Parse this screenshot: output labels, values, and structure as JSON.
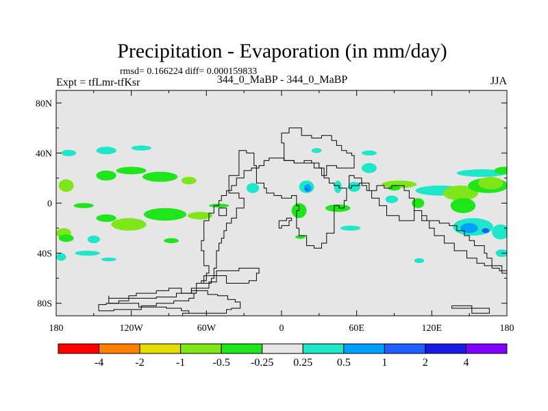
{
  "chart_data": {
    "type": "heatmap",
    "title": "Precipitation - Evaporation (in mm/day)",
    "stats": "rmsd= 0.166224 diff= 0.000159833",
    "left_label": "Expt = tfLmr-tfKsr",
    "center_label": "344_0_MaBP - 344_0_MaBP",
    "right_label": "JJA",
    "xlim": [
      -180,
      180
    ],
    "ylim": [
      -90,
      90
    ],
    "x_ticks": [
      {
        "value": -180,
        "label": "180"
      },
      {
        "value": -120,
        "label": "120W"
      },
      {
        "value": -60,
        "label": "60W"
      },
      {
        "value": 0,
        "label": "0"
      },
      {
        "value": 60,
        "label": "60E"
      },
      {
        "value": 120,
        "label": "120E"
      },
      {
        "value": 180,
        "label": "180"
      }
    ],
    "y_ticks": [
      {
        "value": 80,
        "label": "80N"
      },
      {
        "value": 40,
        "label": "40N"
      },
      {
        "value": 0,
        "label": "0"
      },
      {
        "value": -40,
        "label": "40S"
      },
      {
        "value": -80,
        "label": "80S"
      }
    ],
    "colorbar": {
      "colors": [
        "#ff0000",
        "#ff7f00",
        "#e6dc00",
        "#7fe61a",
        "#1ee61a",
        "#e6e6e6",
        "#1ee6c8",
        "#00a0ff",
        "#1f5fff",
        "#1a1ae6",
        "#8000ff"
      ],
      "labels": [
        "-4",
        "-2",
        "-1",
        "-0.5",
        "-0.25",
        "0.25",
        "0.5",
        "1",
        "2",
        "4"
      ]
    },
    "anomaly_regions": [
      {
        "lon": -170,
        "lat": 40,
        "rlon": 6,
        "rlat": 2.5,
        "class": 6
      },
      {
        "lon": -140,
        "lat": 42,
        "rlon": 8,
        "rlat": 3,
        "class": 6
      },
      {
        "lon": -112,
        "lat": 44,
        "rlon": 8,
        "rlat": 2,
        "class": 6
      },
      {
        "lon": -172,
        "lat": 14,
        "rlon": 6,
        "rlat": 5,
        "class": 3
      },
      {
        "lon": -140,
        "lat": 22,
        "rlon": 8,
        "rlat": 4,
        "class": 4
      },
      {
        "lon": -120,
        "lat": 26,
        "rlon": 12,
        "rlat": 3,
        "class": 4
      },
      {
        "lon": -97,
        "lat": 21,
        "rlon": 14,
        "rlat": 4,
        "class": 4
      },
      {
        "lon": -74,
        "lat": 18,
        "rlon": 6,
        "rlat": 3,
        "class": 3
      },
      {
        "lon": -158,
        "lat": -2,
        "rlon": 8,
        "rlat": 2,
        "class": 4
      },
      {
        "lon": -140,
        "lat": -12,
        "rlon": 8,
        "rlat": 3,
        "class": 4
      },
      {
        "lon": -122,
        "lat": -17,
        "rlon": 14,
        "rlat": 5,
        "class": 3
      },
      {
        "lon": -93,
        "lat": -9,
        "rlon": 17,
        "rlat": 5,
        "class": 4
      },
      {
        "lon": -65,
        "lat": -10,
        "rlon": 10,
        "rlat": 3,
        "class": 3
      },
      {
        "lon": -50,
        "lat": -2,
        "rlon": 8,
        "rlat": 1.5,
        "class": 4
      },
      {
        "lon": -174,
        "lat": -24,
        "rlon": 6,
        "rlat": 4,
        "class": 3
      },
      {
        "lon": -172,
        "lat": -28,
        "rlon": 6,
        "rlat": 3,
        "class": 4
      },
      {
        "lon": -150,
        "lat": -29,
        "rlon": 5,
        "rlat": 3,
        "class": 6
      },
      {
        "lon": -155,
        "lat": -40,
        "rlon": 10,
        "rlat": 2,
        "class": 6
      },
      {
        "lon": -88,
        "lat": -30,
        "rlon": 6,
        "rlat": 2,
        "class": 4
      },
      {
        "lon": -176,
        "lat": -43,
        "rlon": 4,
        "rlat": 3,
        "class": 6
      },
      {
        "lon": -138,
        "lat": -45,
        "rlon": 6,
        "rlat": 1.5,
        "class": 6
      },
      {
        "lon": -23,
        "lat": 12,
        "rlon": 5,
        "rlat": 4,
        "class": 6
      },
      {
        "lon": 20,
        "lat": 13,
        "rlon": 6,
        "rlat": 5,
        "class": 6
      },
      {
        "lon": 21,
        "lat": 12,
        "rlon": 3,
        "rlat": 3,
        "class": 7
      },
      {
        "lon": 20,
        "lat": 11,
        "rlon": 1.2,
        "rlat": 1.2,
        "class": 8
      },
      {
        "lon": 45,
        "lat": 13,
        "rlon": 3,
        "rlat": 5,
        "class": 6
      },
      {
        "lon": 58,
        "lat": 13,
        "rlon": 5,
        "rlat": 4,
        "class": 6
      },
      {
        "lon": 70,
        "lat": 28,
        "rlon": 6,
        "rlat": 4,
        "class": 6
      },
      {
        "lon": 70,
        "lat": 40,
        "rlon": 6,
        "rlat": 2,
        "class": 6
      },
      {
        "lon": 28,
        "lat": 42,
        "rlon": 4,
        "rlat": 2,
        "class": 6
      },
      {
        "lon": 14,
        "lat": -6,
        "rlon": 6,
        "rlat": 6,
        "class": 4
      },
      {
        "lon": 45,
        "lat": -4,
        "rlon": 10,
        "rlat": 3,
        "class": 4
      },
      {
        "lon": 94,
        "lat": 15,
        "rlon": 14,
        "rlat": 3,
        "class": 3
      },
      {
        "lon": 90,
        "lat": 12,
        "rlon": 5,
        "rlat": 2,
        "class": 4
      },
      {
        "lon": 88,
        "lat": 3,
        "rlon": 5,
        "rlat": 3,
        "class": 6
      },
      {
        "lon": 109,
        "lat": 0,
        "rlon": 5,
        "rlat": 4,
        "class": 4
      },
      {
        "lon": 127,
        "lat": 10,
        "rlon": 20,
        "rlat": 4,
        "class": 6
      },
      {
        "lon": 143,
        "lat": 8,
        "rlon": 14,
        "rlat": 6,
        "class": 3
      },
      {
        "lon": 165,
        "lat": 14,
        "rlon": 16,
        "rlat": 6,
        "class": 4
      },
      {
        "lon": 167,
        "lat": 16,
        "rlon": 10,
        "rlat": 5,
        "class": 3
      },
      {
        "lon": 160,
        "lat": 24,
        "rlon": 20,
        "rlat": 3,
        "class": 6
      },
      {
        "lon": 178,
        "lat": 26,
        "rlon": 8,
        "rlat": 3,
        "class": 4
      },
      {
        "lon": 145,
        "lat": -2,
        "rlon": 10,
        "rlat": 6,
        "class": 4
      },
      {
        "lon": 153,
        "lat": -19,
        "rlon": 16,
        "rlat": 7,
        "class": 6
      },
      {
        "lon": 150,
        "lat": -20,
        "rlon": 7,
        "rlat": 4,
        "class": 7
      },
      {
        "lon": 175,
        "lat": -23,
        "rlon": 7,
        "rlat": 6,
        "class": 6
      },
      {
        "lon": 163,
        "lat": -22,
        "rlon": 3,
        "rlat": 2,
        "class": 8
      },
      {
        "lon": 176,
        "lat": -40,
        "rlon": 5,
        "rlat": 3,
        "class": 6
      },
      {
        "lon": 15,
        "lat": -27,
        "rlon": 4,
        "rlat": 1.5,
        "class": 4
      },
      {
        "lon": 55,
        "lat": -20,
        "rlon": 8,
        "rlat": 2,
        "class": 6
      },
      {
        "lon": 110,
        "lat": -46,
        "rlon": 4,
        "rlat": 2,
        "class": 6
      }
    ],
    "coastlines": [
      [
        [
          -79,
          -90
        ],
        [
          -79,
          -88
        ],
        [
          -44,
          -88
        ],
        [
          -44,
          -85
        ],
        [
          -40,
          -84
        ],
        [
          -33,
          -82
        ],
        [
          -33,
          -79
        ],
        [
          -37,
          -77
        ],
        [
          -43,
          -74
        ],
        [
          -51,
          -73
        ],
        [
          -59,
          -70
        ],
        [
          -72,
          -72
        ],
        [
          -84,
          -75
        ],
        [
          -100,
          -76
        ],
        [
          -118,
          -76
        ],
        [
          -138,
          -74
        ],
        [
          -138,
          -80
        ],
        [
          -114,
          -83
        ],
        [
          -92,
          -84
        ],
        [
          -80,
          -86
        ],
        [
          -74,
          -88
        ],
        [
          -79,
          -90
        ]
      ],
      [
        [
          -40,
          -54
        ],
        [
          -34,
          -52
        ],
        [
          -18,
          -56
        ],
        [
          -20,
          -62
        ],
        [
          -26,
          -64
        ],
        [
          -44,
          -58
        ],
        [
          -52,
          -63
        ],
        [
          -58,
          -68
        ],
        [
          -72,
          -72
        ],
        [
          -68,
          -64
        ],
        [
          -62,
          -58
        ],
        [
          -52,
          -54
        ],
        [
          -40,
          -54
        ]
      ],
      [
        [
          -74,
          -76
        ],
        [
          -70,
          -72
        ],
        [
          -80,
          -68
        ],
        [
          -90,
          -70
        ],
        [
          -100,
          -72
        ],
        [
          -116,
          -74
        ],
        [
          -122,
          -78
        ],
        [
          -130,
          -80
        ],
        [
          -140,
          -81
        ],
        [
          -146,
          -82
        ],
        [
          -146,
          -86
        ],
        [
          -134,
          -85
        ],
        [
          -112,
          -82
        ],
        [
          -100,
          -80
        ],
        [
          -86,
          -78
        ],
        [
          -74,
          -76
        ]
      ],
      [
        [
          -56,
          -64
        ],
        [
          -64,
          -62
        ],
        [
          -60,
          -56
        ],
        [
          -58,
          -50
        ],
        [
          -62,
          -44
        ],
        [
          -62,
          -38
        ],
        [
          -64,
          -30
        ],
        [
          -62,
          -20
        ],
        [
          -62,
          -14
        ],
        [
          -58,
          -8
        ],
        [
          -54,
          -2
        ],
        [
          -50,
          2
        ],
        [
          -48,
          6
        ],
        [
          -44,
          10
        ],
        [
          -40,
          14
        ],
        [
          -36,
          20
        ],
        [
          -30,
          26
        ],
        [
          -24,
          28
        ],
        [
          -20,
          30
        ],
        [
          -22,
          40
        ],
        [
          -28,
          42
        ],
        [
          -34,
          22
        ],
        [
          -42,
          8
        ],
        [
          -34,
          4
        ],
        [
          -30,
          -4
        ],
        [
          -36,
          -12
        ],
        [
          -40,
          -16
        ],
        [
          -44,
          -22
        ],
        [
          -46,
          -28
        ],
        [
          -48,
          -32
        ],
        [
          -50,
          -38
        ],
        [
          -52,
          -44
        ],
        [
          -52,
          -52
        ],
        [
          -54,
          -60
        ],
        [
          -56,
          -64
        ]
      ],
      [
        [
          -20,
          26
        ],
        [
          -20,
          16
        ],
        [
          -14,
          12
        ],
        [
          -12,
          8
        ],
        [
          -6,
          6
        ],
        [
          0,
          4
        ],
        [
          4,
          4
        ],
        [
          8,
          6
        ],
        [
          12,
          2
        ],
        [
          12,
          -2
        ],
        [
          14,
          -6
        ],
        [
          12,
          -12
        ],
        [
          12,
          -20
        ],
        [
          14,
          -26
        ],
        [
          20,
          -34
        ],
        [
          26,
          -36
        ],
        [
          32,
          -32
        ],
        [
          36,
          -24
        ],
        [
          42,
          -18
        ],
        [
          42,
          -10
        ],
        [
          42,
          -2
        ],
        [
          46,
          -4
        ],
        [
          50,
          2
        ],
        [
          52,
          8
        ],
        [
          52,
          12
        ],
        [
          46,
          14
        ],
        [
          42,
          16
        ],
        [
          38,
          20
        ],
        [
          34,
          28
        ],
        [
          30,
          32
        ],
        [
          24,
          34
        ],
        [
          18,
          32
        ],
        [
          10,
          34
        ],
        [
          2,
          36
        ],
        [
          -6,
          36
        ],
        [
          -10,
          34
        ],
        [
          -14,
          30
        ],
        [
          -18,
          28
        ],
        [
          -20,
          26
        ]
      ],
      [
        [
          54,
          12
        ],
        [
          56,
          14
        ],
        [
          62,
          16
        ],
        [
          64,
          14
        ],
        [
          68,
          10
        ],
        [
          72,
          4
        ],
        [
          78,
          -2
        ],
        [
          84,
          -10
        ],
        [
          94,
          -14
        ],
        [
          106,
          -6
        ],
        [
          112,
          -10
        ],
        [
          116,
          -14
        ],
        [
          118,
          -20
        ],
        [
          122,
          -26
        ],
        [
          130,
          -32
        ],
        [
          138,
          -38
        ],
        [
          148,
          -44
        ],
        [
          156,
          -48
        ],
        [
          162,
          -50
        ],
        [
          170,
          -50
        ],
        [
          176,
          -56
        ],
        [
          180,
          -60
        ],
        [
          180,
          -54
        ],
        [
          174,
          -52
        ],
        [
          168,
          -44
        ],
        [
          164,
          -40
        ],
        [
          162,
          -34
        ],
        [
          154,
          -30
        ],
        [
          150,
          -26
        ],
        [
          146,
          -22
        ],
        [
          140,
          -18
        ],
        [
          134,
          -16
        ],
        [
          126,
          -14
        ],
        [
          118,
          -14
        ],
        [
          112,
          -6
        ],
        [
          106,
          4
        ],
        [
          102,
          10
        ],
        [
          98,
          14
        ],
        [
          94,
          14
        ],
        [
          88,
          12
        ],
        [
          82,
          14
        ],
        [
          76,
          10
        ],
        [
          70,
          16
        ],
        [
          64,
          20
        ],
        [
          58,
          22
        ],
        [
          54,
          18
        ],
        [
          54,
          12
        ]
      ],
      [
        [
          2,
          36
        ],
        [
          2,
          48
        ],
        [
          0,
          56
        ],
        [
          6,
          60
        ],
        [
          16,
          60
        ],
        [
          16,
          54
        ],
        [
          24,
          52
        ],
        [
          32,
          54
        ],
        [
          36,
          54
        ],
        [
          40,
          50
        ],
        [
          44,
          46
        ],
        [
          48,
          42
        ],
        [
          52,
          40
        ],
        [
          56,
          38
        ],
        [
          58,
          34
        ],
        [
          58,
          28
        ],
        [
          50,
          28
        ],
        [
          44,
          30
        ],
        [
          38,
          30
        ],
        [
          36,
          22
        ],
        [
          32,
          28
        ],
        [
          26,
          32
        ],
        [
          18,
          32
        ],
        [
          10,
          34
        ],
        [
          2,
          36
        ]
      ],
      [
        [
          -2,
          -14
        ],
        [
          4,
          -12
        ],
        [
          8,
          -14
        ],
        [
          6,
          -18
        ],
        [
          0,
          -20
        ],
        [
          -2,
          -14
        ]
      ],
      [
        [
          -50,
          -4
        ],
        [
          -46,
          -4
        ],
        [
          -44,
          -10
        ],
        [
          -48,
          -10
        ],
        [
          -50,
          -4
        ]
      ],
      [
        [
          136,
          -82
        ],
        [
          152,
          -82
        ],
        [
          152,
          -88
        ],
        [
          166,
          -88
        ],
        [
          166,
          -84
        ],
        [
          136,
          -84
        ],
        [
          136,
          -82
        ]
      ]
    ]
  }
}
